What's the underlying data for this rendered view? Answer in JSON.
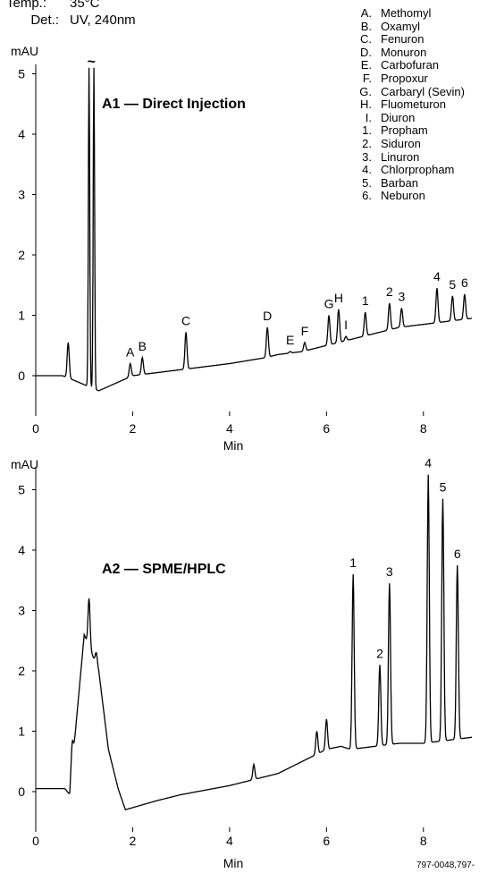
{
  "header": {
    "temp_key": "Temp.:",
    "temp_value": "35°C",
    "det_key": "Det.:",
    "det_value": "UV, 240nm"
  },
  "legend": [
    {
      "key": "A.",
      "name": "Methomyl"
    },
    {
      "key": "B.",
      "name": "Oxamyl"
    },
    {
      "key": "C.",
      "name": "Fenuron"
    },
    {
      "key": "D.",
      "name": "Monuron"
    },
    {
      "key": "E.",
      "name": "Carbofuran"
    },
    {
      "key": "F.",
      "name": "Propoxur"
    },
    {
      "key": "G.",
      "name": "Carbaryl (Sevin)"
    },
    {
      "key": "H.",
      "name": "Fluometuron"
    },
    {
      "key": "I.",
      "name": "Diuron"
    },
    {
      "key": "1.",
      "name": "Propham"
    },
    {
      "key": "2.",
      "name": "Siduron"
    },
    {
      "key": "3.",
      "name": "Linuron"
    },
    {
      "key": "4.",
      "name": "Chlorpropham"
    },
    {
      "key": "5.",
      "name": "Barban"
    },
    {
      "key": "6.",
      "name": "Neburon"
    }
  ],
  "footer_text": "797-0048,797-",
  "chart_data": [
    {
      "type": "line",
      "title": "A1 — Direct Injection",
      "xlabel": "Min",
      "ylabel": "mAU",
      "xlim": [
        0,
        9.0
      ],
      "ylim": [
        -0.6,
        5.1
      ],
      "xticks": [
        0,
        2,
        4,
        6,
        8
      ],
      "yticks": [
        0,
        1,
        2,
        3,
        4,
        5
      ],
      "grid": false,
      "axis_break_marker": "~",
      "baseline": [
        [
          0,
          0.0
        ],
        [
          0.55,
          0.0
        ],
        [
          0.8,
          -0.08
        ],
        [
          1.3,
          -0.25
        ],
        [
          2.0,
          0.0
        ],
        [
          3.0,
          0.1
        ],
        [
          4.0,
          0.2
        ],
        [
          4.75,
          0.3
        ],
        [
          5.0,
          0.35
        ],
        [
          5.5,
          0.4
        ],
        [
          6.0,
          0.5
        ],
        [
          6.5,
          0.6
        ],
        [
          7.0,
          0.7
        ],
        [
          7.5,
          0.8
        ],
        [
          8.0,
          0.85
        ],
        [
          8.5,
          0.9
        ],
        [
          9.0,
          0.95
        ]
      ],
      "peaks": [
        {
          "x": 0.67,
          "y": 0.55,
          "label": ""
        },
        {
          "x": 1.1,
          "y": 5.1,
          "label": "",
          "offscale": true
        },
        {
          "x": 1.2,
          "y": 5.1,
          "label": "",
          "offscale": true
        },
        {
          "x": 1.95,
          "y": 0.2,
          "label": "A"
        },
        {
          "x": 2.2,
          "y": 0.3,
          "label": "B"
        },
        {
          "x": 3.1,
          "y": 0.72,
          "label": "C"
        },
        {
          "x": 4.78,
          "y": 0.8,
          "label": "D"
        },
        {
          "x": 5.25,
          "y": 0.4,
          "label": "E"
        },
        {
          "x": 5.55,
          "y": 0.55,
          "label": "F"
        },
        {
          "x": 6.05,
          "y": 1.0,
          "label": "G"
        },
        {
          "x": 6.25,
          "y": 1.1,
          "label": "H"
        },
        {
          "x": 6.4,
          "y": 0.65,
          "label": "I"
        },
        {
          "x": 6.8,
          "y": 1.05,
          "label": "1"
        },
        {
          "x": 7.3,
          "y": 1.2,
          "label": "2"
        },
        {
          "x": 7.55,
          "y": 1.12,
          "label": "3"
        },
        {
          "x": 8.28,
          "y": 1.45,
          "label": "4"
        },
        {
          "x": 8.6,
          "y": 1.32,
          "label": "5"
        },
        {
          "x": 8.85,
          "y": 1.35,
          "label": "6"
        }
      ]
    },
    {
      "type": "line",
      "title": "A2 — SPME/HPLC",
      "xlabel": "Min",
      "ylabel": "mAU",
      "xlim": [
        0,
        9.0
      ],
      "ylim": [
        -0.6,
        5.3
      ],
      "xticks": [
        0,
        2,
        4,
        6,
        8
      ],
      "yticks": [
        0,
        1,
        2,
        3,
        4,
        5
      ],
      "grid": false,
      "baseline": [
        [
          0,
          0.05
        ],
        [
          0.6,
          0.05
        ],
        [
          0.7,
          -0.05
        ],
        [
          1.0,
          2.6
        ],
        [
          1.3,
          2.0
        ],
        [
          1.5,
          0.7
        ],
        [
          1.7,
          0.05
        ],
        [
          1.85,
          -0.3
        ],
        [
          2.5,
          -0.15
        ],
        [
          3.0,
          -0.05
        ],
        [
          4.0,
          0.1
        ],
        [
          5.0,
          0.3
        ],
        [
          5.5,
          0.5
        ],
        [
          6.0,
          0.7
        ],
        [
          6.3,
          0.75
        ],
        [
          6.5,
          0.7
        ],
        [
          7.0,
          0.75
        ],
        [
          7.5,
          0.8
        ],
        [
          8.0,
          0.8
        ],
        [
          8.5,
          0.85
        ],
        [
          9.0,
          0.9
        ]
      ],
      "peaks": [
        {
          "x": 0.75,
          "y": 0.8,
          "label": ""
        },
        {
          "x": 1.1,
          "y": 3.2,
          "label": ""
        },
        {
          "x": 1.25,
          "y": 2.3,
          "label": ""
        },
        {
          "x": 4.5,
          "y": 0.45,
          "label": ""
        },
        {
          "x": 5.8,
          "y": 1.0,
          "label": ""
        },
        {
          "x": 6.0,
          "y": 1.2,
          "label": ""
        },
        {
          "x": 6.55,
          "y": 3.6,
          "label": "1"
        },
        {
          "x": 7.1,
          "y": 2.1,
          "label": "2"
        },
        {
          "x": 7.3,
          "y": 3.45,
          "label": "3"
        },
        {
          "x": 8.1,
          "y": 5.25,
          "label": "4"
        },
        {
          "x": 8.4,
          "y": 4.85,
          "label": "5"
        },
        {
          "x": 8.7,
          "y": 3.75,
          "label": "6"
        }
      ]
    }
  ]
}
